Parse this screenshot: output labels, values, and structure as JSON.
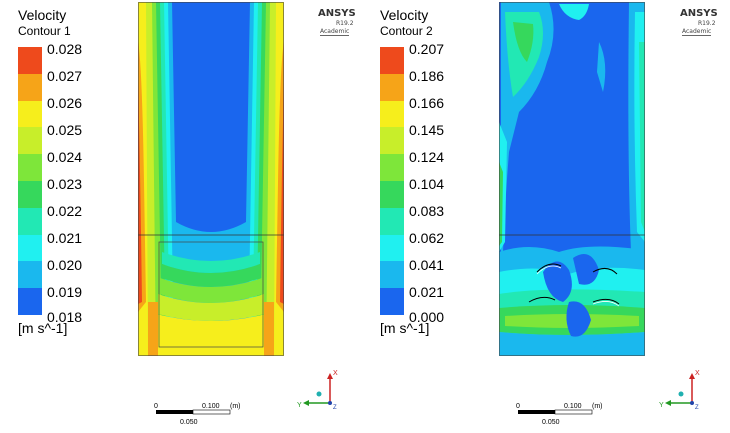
{
  "panels": [
    {
      "title": "Velocity",
      "subtitle": "Contour 1",
      "ticks": [
        "0.028",
        "0.027",
        "0.026",
        "0.025",
        "0.024",
        "0.023",
        "0.022",
        "0.021",
        "0.020",
        "0.019",
        "0.018"
      ],
      "units": "[m s^-1]"
    },
    {
      "title": "Velocity",
      "subtitle": "Contour 2",
      "ticks": [
        "0.207",
        "0.186",
        "0.166",
        "0.145",
        "0.124",
        "0.104",
        "0.083",
        "0.062",
        "0.041",
        "0.021",
        "0.000"
      ],
      "units": "[m s^-1]"
    }
  ],
  "colormap": [
    "#ee4a1c",
    "#f6a418",
    "#f6ee1c",
    "#c8ee2a",
    "#7ee63a",
    "#36d85c",
    "#22e8b4",
    "#20f0f0",
    "#1ab8ee",
    "#1a66ee"
  ],
  "brand": {
    "name": "ANSYS",
    "version": "R19.2",
    "edition": "Academic"
  },
  "scale_bar": {
    "zero": "0",
    "max": "0.100",
    "unit": "(m)",
    "mid": "0.050"
  },
  "axes": {
    "x": "X",
    "y": "Y",
    "z": "Z"
  }
}
